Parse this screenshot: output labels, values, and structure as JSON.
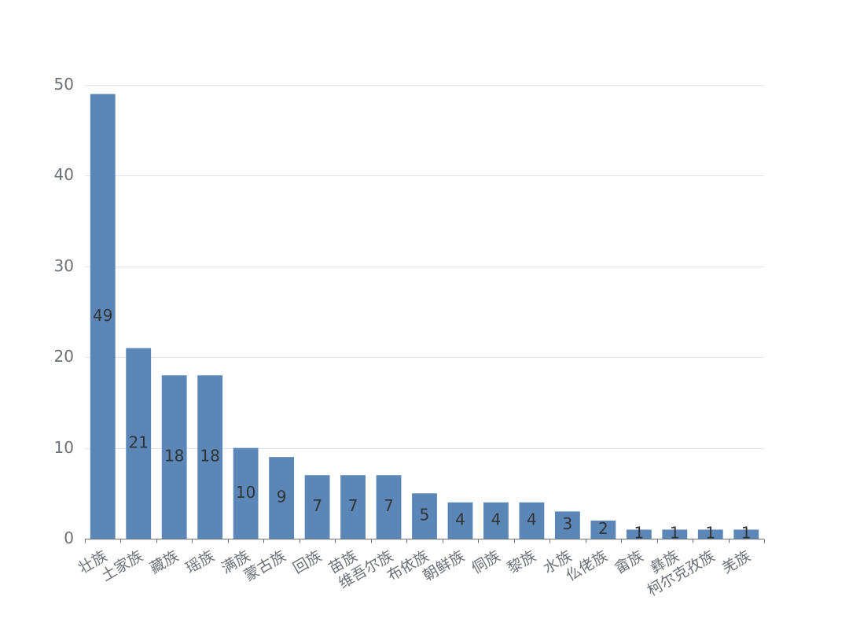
{
  "chart_data": {
    "type": "bar",
    "title": "",
    "xlabel": "",
    "ylabel": "",
    "categories": [
      "壮族",
      "土家族",
      "藏族",
      "瑶族",
      "满族",
      "蒙古族",
      "回族",
      "苗族",
      "维吾尔族",
      "布依族",
      "朝鲜族",
      "侗族",
      "黎族",
      "水族",
      "仫佬族",
      "畲族",
      "彝族",
      "柯尔克孜族",
      "羌族"
    ],
    "values": [
      49,
      21,
      18,
      18,
      10,
      9,
      7,
      7,
      7,
      5,
      4,
      4,
      4,
      3,
      2,
      1,
      1,
      1,
      1
    ],
    "ylim": [
      0,
      50
    ],
    "yticks": [
      0,
      10,
      20,
      30,
      40,
      50
    ],
    "grid": true,
    "legend": "none",
    "data_labels": "inside-middle",
    "bar_color": "#5b87b8",
    "grid_color": "#e0e6f1",
    "axis_label_color": "#6e7079",
    "data_label_color": "#333333"
  }
}
